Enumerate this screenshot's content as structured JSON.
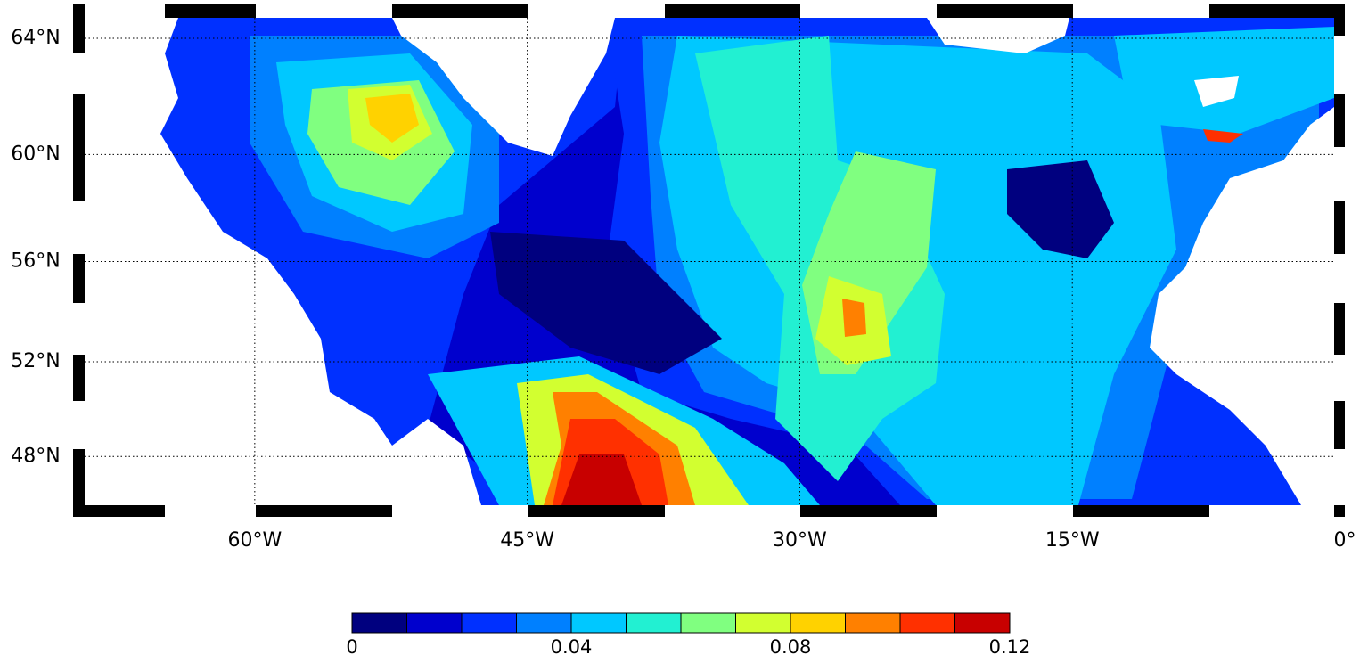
{
  "chart_data": {
    "type": "filled-contour-map",
    "xlim": [
      -70,
      0
    ],
    "ylim": [
      45.35,
      65.1
    ],
    "xticks": [
      {
        "value": -60,
        "label": "60°W"
      },
      {
        "value": -45,
        "label": "45°W"
      },
      {
        "value": -30,
        "label": "30°W"
      },
      {
        "value": -15,
        "label": "15°W"
      },
      {
        "value": 0,
        "label": "0°"
      }
    ],
    "yticks": [
      {
        "value": 48,
        "label": "48°N"
      },
      {
        "value": 52,
        "label": "52°N"
      },
      {
        "value": 56,
        "label": "56°N"
      },
      {
        "value": 60,
        "label": "60°N"
      },
      {
        "value": 64,
        "label": "64°N"
      }
    ],
    "grid": true,
    "colorbar": {
      "levels": [
        0,
        0.01,
        0.02,
        0.03,
        0.04,
        0.05,
        0.06,
        0.07,
        0.08,
        0.09,
        0.1,
        0.11,
        0.12
      ],
      "colors": [
        "#00007f",
        "#0000cd",
        "#0030ff",
        "#0080ff",
        "#00c8ff",
        "#22f0d2",
        "#80ff80",
        "#d2ff30",
        "#ffd200",
        "#ff8000",
        "#ff3000",
        "#c80000"
      ],
      "ticks": [
        0,
        0.04,
        0.08,
        0.12
      ]
    }
  }
}
